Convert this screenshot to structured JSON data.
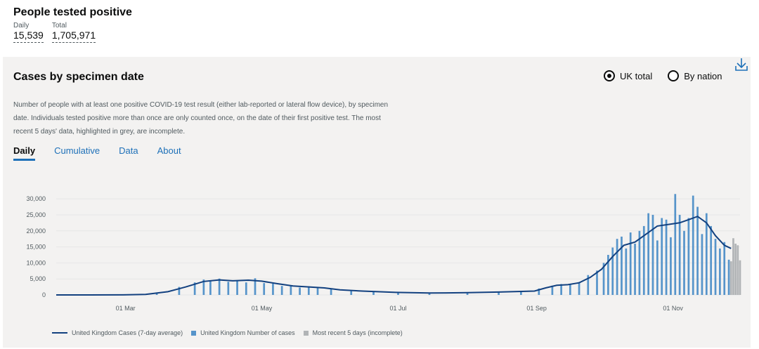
{
  "headline": {
    "title": "People tested positive",
    "daily_label": "Daily",
    "daily_value": "15,539",
    "total_label": "Total",
    "total_value": "1,705,971"
  },
  "card": {
    "title": "Cases by specimen date",
    "radio_uk": "UK total",
    "radio_nation": "By nation",
    "selected": "UK total",
    "description": "Number of people with at least one positive COVID-19 test result (either lab-reported or lateral flow device), by specimen date. Individuals tested positive more than once are only counted once, on the date of their first positive test. The most recent 5 days' data, highlighted in grey, are incomplete.",
    "tabs": [
      "Daily",
      "Cumulative",
      "Data",
      "About"
    ],
    "active_tab": "Daily"
  },
  "legend": {
    "line": "United Kingdom Cases (7-day average)",
    "bars": "United Kingdom Number of cases",
    "incomplete": "Most recent 5 days (incomplete)"
  },
  "colors": {
    "bar": "#5694ca",
    "line": "#12407f",
    "incomplete": "#b1b4b6",
    "link": "#1d70b8"
  },
  "chart_data": {
    "type": "bar",
    "x_ticks": [
      "01 Mar",
      "01 May",
      "01 Jul",
      "01 Sep",
      "01 Nov"
    ],
    "y_ticks": [
      "0",
      "5,000",
      "10,000",
      "15,000",
      "20,000",
      "25,000",
      "30,000"
    ],
    "ylim": [
      0,
      32000
    ],
    "grid": true,
    "legend_position": "bottom-left",
    "series": [
      {
        "name": "United Kingdom Cases (7-day average)",
        "type": "line",
        "points": [
          [
            "2020-01-30",
            0
          ],
          [
            "2020-02-29",
            20
          ],
          [
            "2020-03-10",
            150
          ],
          [
            "2020-03-20",
            1000
          ],
          [
            "2020-03-28",
            2500
          ],
          [
            "2020-04-05",
            4200
          ],
          [
            "2020-04-12",
            4700
          ],
          [
            "2020-04-18",
            4400
          ],
          [
            "2020-04-25",
            4600
          ],
          [
            "2020-05-01",
            4300
          ],
          [
            "2020-05-08",
            3500
          ],
          [
            "2020-05-15",
            2800
          ],
          [
            "2020-05-22",
            2500
          ],
          [
            "2020-05-29",
            2200
          ],
          [
            "2020-06-05",
            1600
          ],
          [
            "2020-06-15",
            1200
          ],
          [
            "2020-06-30",
            800
          ],
          [
            "2020-07-15",
            600
          ],
          [
            "2020-08-01",
            700
          ],
          [
            "2020-08-15",
            900
          ],
          [
            "2020-08-31",
            1200
          ],
          [
            "2020-09-05",
            2200
          ],
          [
            "2020-09-10",
            3000
          ],
          [
            "2020-09-15",
            3200
          ],
          [
            "2020-09-20",
            3800
          ],
          [
            "2020-09-25",
            5500
          ],
          [
            "2020-09-30",
            8000
          ],
          [
            "2020-10-05",
            12000
          ],
          [
            "2020-10-10",
            15500
          ],
          [
            "2020-10-15",
            16500
          ],
          [
            "2020-10-20",
            19000
          ],
          [
            "2020-10-25",
            21500
          ],
          [
            "2020-10-30",
            22000
          ],
          [
            "2020-11-04",
            22500
          ],
          [
            "2020-11-08",
            23500
          ],
          [
            "2020-11-12",
            24500
          ],
          [
            "2020-11-16",
            22500
          ],
          [
            "2020-11-20",
            18500
          ],
          [
            "2020-11-24",
            15500
          ],
          [
            "2020-11-27",
            14500
          ]
        ]
      },
      {
        "name": "United Kingdom Number of cases",
        "type": "bar",
        "points": [
          [
            "2020-03-15",
            700
          ],
          [
            "2020-03-25",
            2500
          ],
          [
            "2020-04-01",
            3900
          ],
          [
            "2020-04-05",
            4800
          ],
          [
            "2020-04-08",
            4300
          ],
          [
            "2020-04-12",
            5100
          ],
          [
            "2020-04-16",
            4100
          ],
          [
            "2020-04-20",
            4600
          ],
          [
            "2020-04-24",
            3900
          ],
          [
            "2020-04-28",
            5200
          ],
          [
            "2020-05-02",
            3700
          ],
          [
            "2020-05-06",
            3500
          ],
          [
            "2020-05-10",
            2800
          ],
          [
            "2020-05-14",
            3000
          ],
          [
            "2020-05-18",
            2300
          ],
          [
            "2020-05-22",
            2700
          ],
          [
            "2020-05-26",
            2200
          ],
          [
            "2020-06-01",
            1800
          ],
          [
            "2020-06-10",
            1300
          ],
          [
            "2020-06-20",
            1000
          ],
          [
            "2020-07-01",
            700
          ],
          [
            "2020-07-15",
            600
          ],
          [
            "2020-08-01",
            700
          ],
          [
            "2020-08-15",
            1000
          ],
          [
            "2020-08-25",
            1100
          ],
          [
            "2020-09-02",
            2000
          ],
          [
            "2020-09-08",
            2900
          ],
          [
            "2020-09-12",
            3400
          ],
          [
            "2020-09-16",
            3200
          ],
          [
            "2020-09-20",
            4000
          ],
          [
            "2020-09-24",
            6200
          ],
          [
            "2020-09-28",
            7600
          ],
          [
            "2020-10-01",
            10000
          ],
          [
            "2020-10-03",
            12500
          ],
          [
            "2020-10-05",
            14800
          ],
          [
            "2020-10-07",
            17500
          ],
          [
            "2020-10-09",
            18200
          ],
          [
            "2020-10-11",
            14500
          ],
          [
            "2020-10-13",
            19500
          ],
          [
            "2020-10-15",
            16000
          ],
          [
            "2020-10-17",
            20000
          ],
          [
            "2020-10-19",
            21500
          ],
          [
            "2020-10-21",
            25500
          ],
          [
            "2020-10-23",
            25000
          ],
          [
            "2020-10-25",
            17000
          ],
          [
            "2020-10-27",
            24000
          ],
          [
            "2020-10-29",
            23500
          ],
          [
            "2020-10-31",
            18000
          ],
          [
            "2020-11-02",
            31500
          ],
          [
            "2020-11-04",
            25000
          ],
          [
            "2020-11-06",
            20000
          ],
          [
            "2020-11-08",
            24000
          ],
          [
            "2020-11-10",
            31000
          ],
          [
            "2020-11-12",
            27500
          ],
          [
            "2020-11-14",
            19000
          ],
          [
            "2020-11-16",
            25500
          ],
          [
            "2020-11-18",
            21500
          ],
          [
            "2020-11-20",
            17500
          ],
          [
            "2020-11-22",
            14500
          ],
          [
            "2020-11-24",
            16500
          ],
          [
            "2020-11-26",
            11000
          ]
        ]
      },
      {
        "name": "Most recent 5 days (incomplete)",
        "type": "bar",
        "points": [
          [
            "2020-11-27",
            10500
          ],
          [
            "2020-11-28",
            17700
          ],
          [
            "2020-11-29",
            16000
          ],
          [
            "2020-11-30",
            15500
          ],
          [
            "2020-12-01",
            10800
          ]
        ]
      }
    ]
  }
}
